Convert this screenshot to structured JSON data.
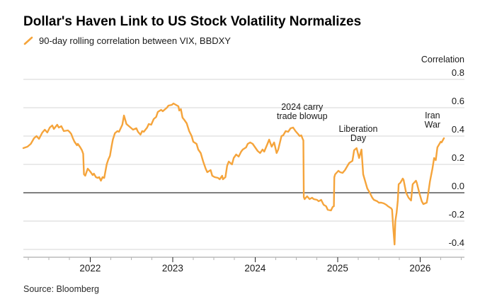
{
  "header": {
    "title": "Dollar's Haven Link to US Stock Volatility Normalizes",
    "legend": {
      "icon": "line-swatch",
      "label": "90-day rolling correlation between VIX, BBDXY"
    }
  },
  "source": "Source: Bloomberg",
  "colors": {
    "line": "#F5A43B",
    "grid": "#D6D6D6",
    "zero_line": "#000000",
    "axis": "#9A9A9A",
    "major_tick": "#222222",
    "minor_tick": "#B3B3B3",
    "text": "#1A1A1A"
  },
  "chart_data": {
    "type": "line",
    "title": "Dollar's Haven Link to US Stock Volatility Normalizes",
    "ylabel": "Correlation",
    "xlabel": "",
    "legend_position": "top-left",
    "grid": "horizontal",
    "zero_line": true,
    "ylim": [
      -0.5,
      0.85
    ],
    "xlim": [
      2021.19,
      2026.53
    ],
    "y_ticks": [
      0.8,
      0.6,
      0.4,
      0.2,
      0.0,
      -0.2,
      -0.4
    ],
    "y_tick_labels": [
      "0.8",
      "0.6",
      "0.4",
      "0.2",
      "0.0",
      "-0.2",
      "-0.4"
    ],
    "x_ticks": [
      2022,
      2023,
      2024,
      2025,
      2026
    ],
    "x_tick_labels": [
      "2022",
      "2023",
      "2024",
      "2025",
      "2026"
    ],
    "x_minor_ticks": [
      2021.25,
      2021.5,
      2021.75,
      2022.25,
      2022.5,
      2022.75,
      2023.25,
      2023.5,
      2023.75,
      2024.25,
      2024.5,
      2024.75,
      2025.25,
      2025.5,
      2025.75,
      2026.25,
      2026.5
    ],
    "annotations": [
      {
        "lines": [
          "2024 carry",
          "trade blowup"
        ],
        "x": 2024.57,
        "y": [
          0.585,
          0.52
        ]
      },
      {
        "lines": [
          "Liberation",
          "Day"
        ],
        "x": 2025.25,
        "y": [
          0.43,
          0.365
        ]
      },
      {
        "lines": [
          "Iran",
          "War"
        ],
        "x": 2026.15,
        "y": [
          0.525,
          0.46
        ]
      }
    ],
    "series": [
      {
        "name": "90-day rolling correlation between VIX, BBDXY",
        "points": [
          [
            2021.19,
            0.315
          ],
          [
            2021.24,
            0.325
          ],
          [
            2021.28,
            0.345
          ],
          [
            2021.32,
            0.385
          ],
          [
            2021.35,
            0.4
          ],
          [
            2021.38,
            0.38
          ],
          [
            2021.42,
            0.425
          ],
          [
            2021.45,
            0.445
          ],
          [
            2021.48,
            0.425
          ],
          [
            2021.51,
            0.46
          ],
          [
            2021.54,
            0.475
          ],
          [
            2021.56,
            0.45
          ],
          [
            2021.6,
            0.48
          ],
          [
            2021.62,
            0.46
          ],
          [
            2021.65,
            0.47
          ],
          [
            2021.68,
            0.435
          ],
          [
            2021.73,
            0.44
          ],
          [
            2021.75,
            0.43
          ],
          [
            2021.77,
            0.415
          ],
          [
            2021.79,
            0.385
          ],
          [
            2021.81,
            0.36
          ],
          [
            2021.84,
            0.335
          ],
          [
            2021.85,
            0.345
          ],
          [
            2021.88,
            0.32
          ],
          [
            2021.9,
            0.3
          ],
          [
            2021.915,
            0.275
          ],
          [
            2021.925,
            0.13
          ],
          [
            2021.94,
            0.12
          ],
          [
            2021.97,
            0.17
          ],
          [
            2022.0,
            0.15
          ],
          [
            2022.03,
            0.125
          ],
          [
            2022.045,
            0.135
          ],
          [
            2022.07,
            0.11
          ],
          [
            2022.09,
            0.105
          ],
          [
            2022.11,
            0.11
          ],
          [
            2022.13,
            0.085
          ],
          [
            2022.15,
            0.11
          ],
          [
            2022.17,
            0.105
          ],
          [
            2022.2,
            0.2
          ],
          [
            2022.22,
            0.235
          ],
          [
            2022.24,
            0.26
          ],
          [
            2022.26,
            0.33
          ],
          [
            2022.275,
            0.375
          ],
          [
            2022.3,
            0.42
          ],
          [
            2022.33,
            0.435
          ],
          [
            2022.35,
            0.43
          ],
          [
            2022.39,
            0.48
          ],
          [
            2022.41,
            0.545
          ],
          [
            2022.44,
            0.485
          ],
          [
            2022.47,
            0.47
          ],
          [
            2022.5,
            0.455
          ],
          [
            2022.52,
            0.445
          ],
          [
            2022.56,
            0.455
          ],
          [
            2022.58,
            0.43
          ],
          [
            2022.61,
            0.41
          ],
          [
            2022.63,
            0.435
          ],
          [
            2022.65,
            0.43
          ],
          [
            2022.69,
            0.46
          ],
          [
            2022.71,
            0.485
          ],
          [
            2022.74,
            0.48
          ],
          [
            2022.77,
            0.52
          ],
          [
            2022.8,
            0.535
          ],
          [
            2022.82,
            0.57
          ],
          [
            2022.86,
            0.585
          ],
          [
            2022.88,
            0.575
          ],
          [
            2022.93,
            0.6
          ],
          [
            2022.95,
            0.615
          ],
          [
            2022.99,
            0.62
          ],
          [
            2023.01,
            0.63
          ],
          [
            2023.04,
            0.62
          ],
          [
            2023.07,
            0.61
          ],
          [
            2023.08,
            0.58
          ],
          [
            2023.1,
            0.59
          ],
          [
            2023.12,
            0.53
          ],
          [
            2023.14,
            0.515
          ],
          [
            2023.17,
            0.49
          ],
          [
            2023.2,
            0.435
          ],
          [
            2023.23,
            0.4
          ],
          [
            2023.25,
            0.36
          ],
          [
            2023.29,
            0.345
          ],
          [
            2023.31,
            0.305
          ],
          [
            2023.34,
            0.28
          ],
          [
            2023.37,
            0.22
          ],
          [
            2023.4,
            0.17
          ],
          [
            2023.42,
            0.145
          ],
          [
            2023.46,
            0.16
          ],
          [
            2023.48,
            0.12
          ],
          [
            2023.51,
            0.11
          ],
          [
            2023.55,
            0.105
          ],
          [
            2023.57,
            0.095
          ],
          [
            2023.6,
            0.12
          ],
          [
            2023.61,
            0.095
          ],
          [
            2023.64,
            0.11
          ],
          [
            2023.66,
            0.19
          ],
          [
            2023.68,
            0.22
          ],
          [
            2023.72,
            0.2
          ],
          [
            2023.74,
            0.245
          ],
          [
            2023.77,
            0.27
          ],
          [
            2023.8,
            0.255
          ],
          [
            2023.83,
            0.29
          ],
          [
            2023.85,
            0.305
          ],
          [
            2023.89,
            0.32
          ],
          [
            2023.91,
            0.345
          ],
          [
            2023.94,
            0.355
          ],
          [
            2023.97,
            0.345
          ],
          [
            2024.0,
            0.32
          ],
          [
            2024.03,
            0.295
          ],
          [
            2024.06,
            0.28
          ],
          [
            2024.09,
            0.305
          ],
          [
            2024.11,
            0.29
          ],
          [
            2024.15,
            0.345
          ],
          [
            2024.17,
            0.375
          ],
          [
            2024.2,
            0.325
          ],
          [
            2024.23,
            0.355
          ],
          [
            2024.26,
            0.28
          ],
          [
            2024.28,
            0.305
          ],
          [
            2024.32,
            0.4
          ],
          [
            2024.34,
            0.405
          ],
          [
            2024.37,
            0.435
          ],
          [
            2024.4,
            0.43
          ],
          [
            2024.43,
            0.455
          ],
          [
            2024.46,
            0.46
          ],
          [
            2024.49,
            0.435
          ],
          [
            2024.52,
            0.415
          ],
          [
            2024.54,
            0.4
          ],
          [
            2024.56,
            0.405
          ],
          [
            2024.58,
            0.375
          ],
          [
            2024.585,
            0.37
          ],
          [
            2024.59,
            -0.03
          ],
          [
            2024.6,
            -0.045
          ],
          [
            2024.63,
            -0.025
          ],
          [
            2024.66,
            -0.045
          ],
          [
            2024.69,
            -0.035
          ],
          [
            2024.71,
            -0.045
          ],
          [
            2024.75,
            -0.05
          ],
          [
            2024.77,
            -0.06
          ],
          [
            2024.8,
            -0.05
          ],
          [
            2024.83,
            -0.085
          ],
          [
            2024.86,
            -0.095
          ],
          [
            2024.88,
            -0.12
          ],
          [
            2024.92,
            -0.125
          ],
          [
            2024.94,
            -0.1
          ],
          [
            2024.955,
            -0.095
          ],
          [
            2024.96,
            0.11
          ],
          [
            2024.97,
            0.13
          ],
          [
            2025.01,
            0.155
          ],
          [
            2025.03,
            0.145
          ],
          [
            2025.06,
            0.14
          ],
          [
            2025.09,
            0.16
          ],
          [
            2025.12,
            0.19
          ],
          [
            2025.14,
            0.21
          ],
          [
            2025.18,
            0.225
          ],
          [
            2025.2,
            0.3
          ],
          [
            2025.23,
            0.315
          ],
          [
            2025.26,
            0.245
          ],
          [
            2025.29,
            0.305
          ],
          [
            2025.31,
            0.13
          ],
          [
            2025.33,
            0.09
          ],
          [
            2025.36,
            0.03
          ],
          [
            2025.39,
            0.0
          ],
          [
            2025.42,
            -0.035
          ],
          [
            2025.44,
            -0.05
          ],
          [
            2025.48,
            -0.06
          ],
          [
            2025.5,
            -0.07
          ],
          [
            2025.53,
            -0.07
          ],
          [
            2025.56,
            -0.075
          ],
          [
            2025.59,
            -0.085
          ],
          [
            2025.61,
            -0.095
          ],
          [
            2025.65,
            -0.11
          ],
          [
            2025.66,
            -0.12
          ],
          [
            2025.675,
            -0.25
          ],
          [
            2025.69,
            -0.365
          ],
          [
            2025.7,
            -0.2
          ],
          [
            2025.715,
            -0.14
          ],
          [
            2025.73,
            -0.055
          ],
          [
            2025.74,
            0.06
          ],
          [
            2025.76,
            0.07
          ],
          [
            2025.79,
            0.1
          ],
          [
            2025.8,
            0.09
          ],
          [
            2025.83,
            0.0
          ],
          [
            2025.86,
            -0.035
          ],
          [
            2025.89,
            -0.055
          ],
          [
            2025.91,
            0.06
          ],
          [
            2025.95,
            0.085
          ],
          [
            2025.96,
            0.07
          ],
          [
            2025.99,
            0.0
          ],
          [
            2026.02,
            -0.06
          ],
          [
            2026.04,
            -0.08
          ],
          [
            2026.08,
            -0.07
          ],
          [
            2026.09,
            -0.04
          ],
          [
            2026.12,
            0.08
          ],
          [
            2026.15,
            0.17
          ],
          [
            2026.17,
            0.245
          ],
          [
            2026.19,
            0.23
          ],
          [
            2026.21,
            0.32
          ],
          [
            2026.25,
            0.36
          ],
          [
            2026.26,
            0.355
          ],
          [
            2026.29,
            0.385
          ]
        ]
      }
    ]
  }
}
